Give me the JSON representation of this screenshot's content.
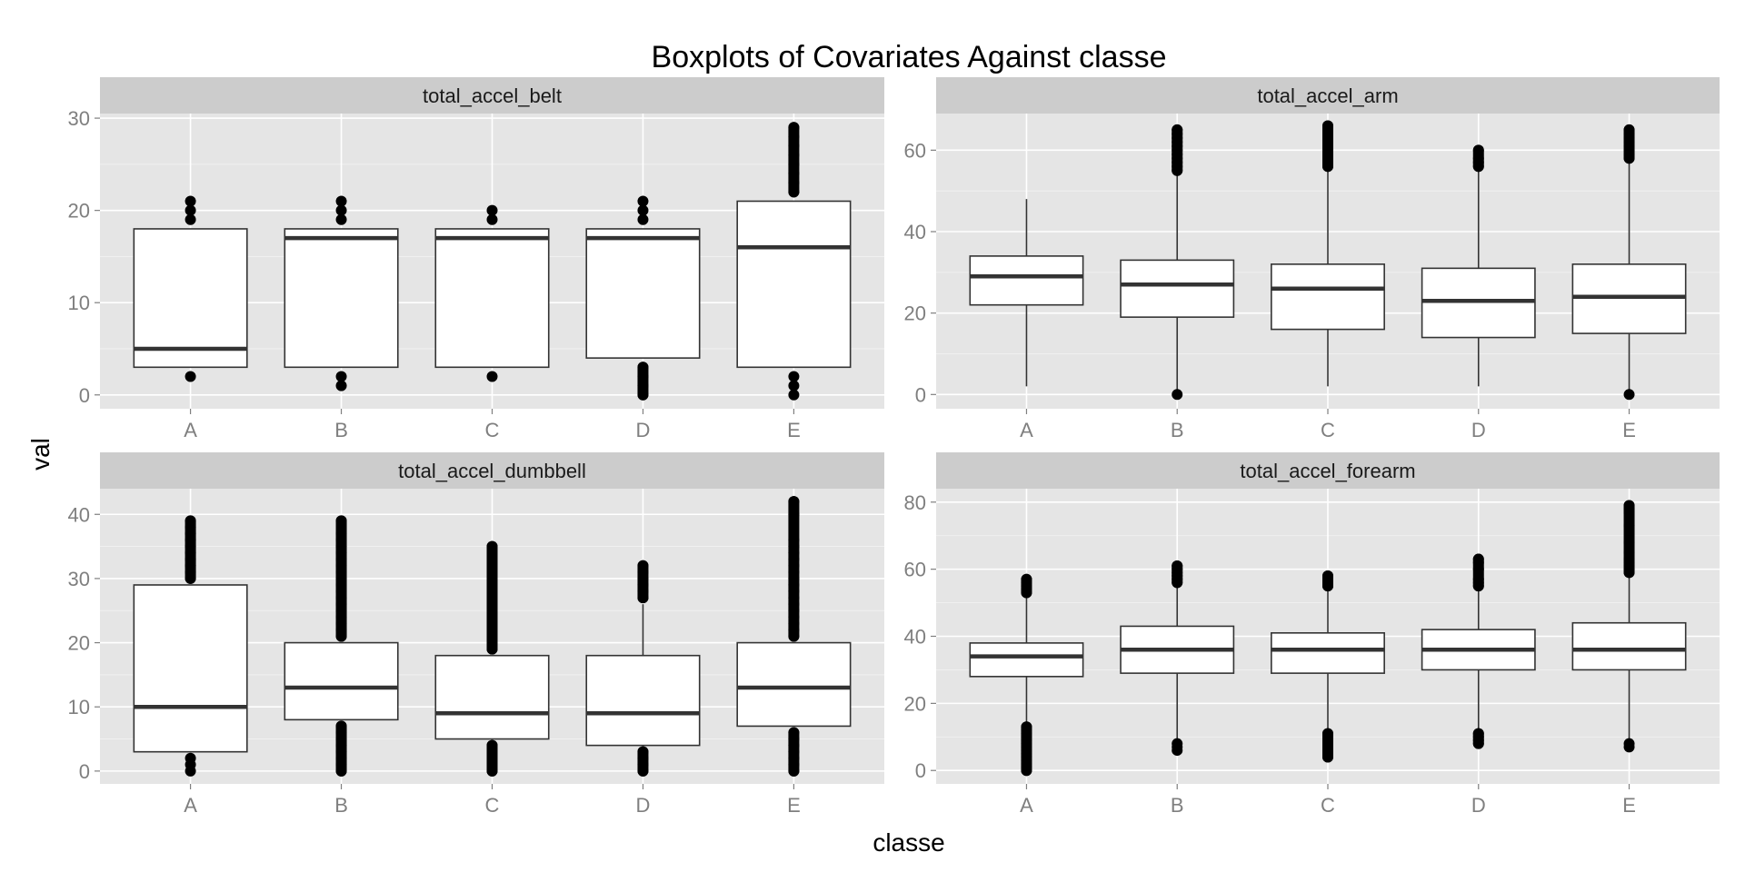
{
  "chart_data": {
    "type": "boxplot",
    "title": "Boxplots of Covariates Against classe",
    "xlabel": "classe",
    "ylabel": "val",
    "categories": [
      "A",
      "B",
      "C",
      "D",
      "E"
    ],
    "grid": true,
    "panels": [
      {
        "name": "total_accel_belt",
        "ylim": [
          -1.5,
          30.5
        ],
        "yticks": [
          0,
          10,
          20,
          30
        ],
        "boxes": [
          {
            "category": "A",
            "lower_whisker": 3,
            "q1": 3,
            "median": 5,
            "q3": 18,
            "upper_whisker": 18,
            "outliers_low": [
              2
            ],
            "outliers_high": [
              19,
              20,
              21
            ]
          },
          {
            "category": "B",
            "lower_whisker": 3,
            "q1": 3,
            "median": 17,
            "q3": 18,
            "upper_whisker": 18,
            "outliers_low": [
              1,
              2
            ],
            "outliers_high": [
              19,
              20,
              21
            ]
          },
          {
            "category": "C",
            "lower_whisker": 3,
            "q1": 3,
            "median": 17,
            "q3": 18,
            "upper_whisker": 18,
            "outliers_low": [
              2
            ],
            "outliers_high": [
              19,
              20
            ]
          },
          {
            "category": "D",
            "lower_whisker": 4,
            "q1": 4,
            "median": 17,
            "q3": 18,
            "upper_whisker": 18,
            "outliers_low": [
              0,
              1,
              2,
              3
            ],
            "outliers_high": [
              19,
              20,
              21
            ]
          },
          {
            "category": "E",
            "lower_whisker": 3,
            "q1": 3,
            "median": 16,
            "q3": 21,
            "upper_whisker": 21,
            "outliers_low": [
              0,
              1,
              2
            ],
            "outliers_high": [
              22,
              23,
              24,
              25,
              26,
              27,
              28,
              29
            ]
          }
        ]
      },
      {
        "name": "total_accel_arm",
        "ylim": [
          -3.5,
          69
        ],
        "yticks": [
          0,
          20,
          40,
          60
        ],
        "boxes": [
          {
            "category": "A",
            "lower_whisker": 2,
            "q1": 22,
            "median": 29,
            "q3": 34,
            "upper_whisker": 48,
            "outliers_low": [],
            "outliers_high": []
          },
          {
            "category": "B",
            "lower_whisker": 1,
            "q1": 19,
            "median": 27,
            "q3": 33,
            "upper_whisker": 54,
            "outliers_low": [
              0
            ],
            "outliers_high": [
              55,
              56,
              57,
              58,
              59,
              60,
              61,
              62,
              63,
              64,
              65
            ]
          },
          {
            "category": "C",
            "lower_whisker": 2,
            "q1": 16,
            "median": 26,
            "q3": 32,
            "upper_whisker": 55,
            "outliers_low": [],
            "outliers_high": [
              56,
              57,
              58,
              60,
              62,
              66
            ]
          },
          {
            "category": "D",
            "lower_whisker": 2,
            "q1": 14,
            "median": 23,
            "q3": 31,
            "upper_whisker": 55,
            "outliers_low": [],
            "outliers_high": [
              56,
              57,
              58,
              60
            ]
          },
          {
            "category": "E",
            "lower_whisker": 1,
            "q1": 15,
            "median": 24,
            "q3": 32,
            "upper_whisker": 57,
            "outliers_low": [
              0
            ],
            "outliers_high": [
              58,
              59,
              60,
              61,
              62,
              63,
              64,
              65
            ]
          }
        ]
      },
      {
        "name": "total_accel_dumbbell",
        "ylim": [
          -2,
          44
        ],
        "yticks": [
          0,
          10,
          20,
          30,
          40
        ],
        "boxes": [
          {
            "category": "A",
            "lower_whisker": 3,
            "q1": 3,
            "median": 10,
            "q3": 29,
            "upper_whisker": 29,
            "outliers_low": [
              0,
              1,
              2
            ],
            "outliers_high": [
              30,
              31,
              32,
              33,
              34,
              35,
              36,
              37,
              38,
              39
            ]
          },
          {
            "category": "B",
            "lower_whisker": 8,
            "q1": 8,
            "median": 13,
            "q3": 20,
            "upper_whisker": 20,
            "outliers_low": [
              0,
              1,
              2,
              3,
              4,
              5,
              6,
              7
            ],
            "outliers_high": [
              21,
              22,
              23,
              24,
              25,
              26,
              27,
              28,
              29,
              30,
              31,
              32,
              33,
              34,
              35,
              36,
              37,
              39
            ]
          },
          {
            "category": "C",
            "lower_whisker": 5,
            "q1": 5,
            "median": 9,
            "q3": 18,
            "upper_whisker": 18,
            "outliers_low": [
              0,
              1,
              2,
              3,
              4
            ],
            "outliers_high": [
              19,
              20,
              21,
              22,
              23,
              24,
              25,
              26,
              27,
              28,
              29,
              30,
              31,
              32,
              33,
              34,
              35
            ]
          },
          {
            "category": "D",
            "lower_whisker": 4,
            "q1": 4,
            "median": 9,
            "q3": 18,
            "upper_whisker": 26,
            "outliers_low": [
              0,
              1,
              2,
              3
            ],
            "outliers_high": [
              27,
              28,
              29,
              30,
              31,
              32
            ]
          },
          {
            "category": "E",
            "lower_whisker": 7,
            "q1": 7,
            "median": 13,
            "q3": 20,
            "upper_whisker": 20,
            "outliers_low": [
              0,
              1,
              2,
              3,
              4,
              5,
              6
            ],
            "outliers_high": [
              21,
              22,
              23,
              24,
              25,
              26,
              27,
              28,
              29,
              30,
              31,
              32,
              33,
              34,
              35,
              36,
              40,
              42
            ]
          }
        ]
      },
      {
        "name": "total_accel_forearm",
        "ylim": [
          -4,
          84
        ],
        "yticks": [
          0,
          20,
          40,
          60,
          80
        ],
        "boxes": [
          {
            "category": "A",
            "lower_whisker": 14,
            "q1": 28,
            "median": 34,
            "q3": 38,
            "upper_whisker": 52,
            "outliers_low": [
              0,
              1,
              2,
              3,
              4,
              5,
              6,
              7,
              8,
              9,
              10,
              11,
              12,
              13
            ],
            "outliers_high": [
              53,
              54,
              55,
              56,
              57
            ]
          },
          {
            "category": "B",
            "lower_whisker": 9,
            "q1": 29,
            "median": 36,
            "q3": 43,
            "upper_whisker": 55,
            "outliers_low": [
              6,
              7,
              8
            ],
            "outliers_high": [
              56,
              57,
              58,
              59,
              60,
              61
            ]
          },
          {
            "category": "C",
            "lower_whisker": 12,
            "q1": 29,
            "median": 36,
            "q3": 41,
            "upper_whisker": 54,
            "outliers_low": [
              4,
              5,
              6,
              7,
              8,
              9,
              10,
              11
            ],
            "outliers_high": [
              55,
              56,
              57,
              58
            ]
          },
          {
            "category": "D",
            "lower_whisker": 12,
            "q1": 30,
            "median": 36,
            "q3": 42,
            "upper_whisker": 54,
            "outliers_low": [
              8,
              9,
              10,
              11
            ],
            "outliers_high": [
              55,
              56,
              57,
              60,
              62,
              63
            ]
          },
          {
            "category": "E",
            "lower_whisker": 9,
            "q1": 30,
            "median": 36,
            "q3": 44,
            "upper_whisker": 58,
            "outliers_low": [
              7,
              8
            ],
            "outliers_high": [
              59,
              60,
              61,
              62,
              63,
              65,
              68,
              73,
              77,
              78,
              79
            ]
          }
        ]
      }
    ]
  }
}
